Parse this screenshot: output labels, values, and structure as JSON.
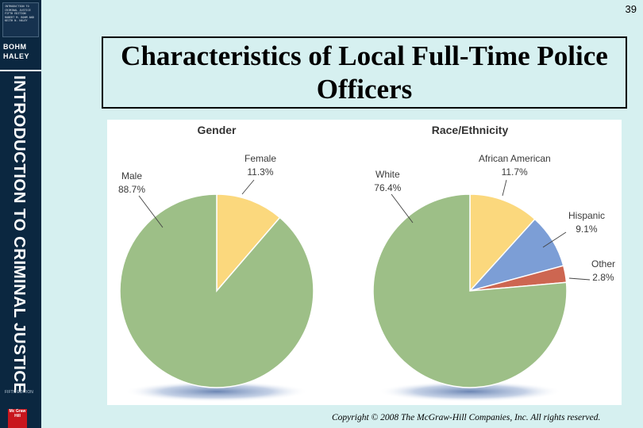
{
  "page_number": "39",
  "slide_title": "Characteristics of Local Full-Time Police Officers",
  "book_spine": {
    "cover_text": "INTRODUCTION TO CRIMINAL JUSTICE FIFTH EDITION ROBERT M. BOHM AND KEITH N. HALEY",
    "authors": [
      "BOHM",
      "HALEY"
    ],
    "title": "INTRODUCTION TO CRIMINAL JUSTICE",
    "edition": "FIFTH EDITION",
    "publisher": "Mc Graw Hill"
  },
  "copyright": "Copyright © 2008 The McGraw-Hill Companies, Inc. All rights reserved.",
  "colors": {
    "slide_background": "#d6f0f0",
    "spine": "#0b2740",
    "green": "#9dbf87",
    "yellow": "#fbd87d",
    "blue": "#7c9ed6",
    "red": "#cd6651",
    "shadow": "#3a5d9a"
  },
  "chart_data": [
    {
      "type": "pie",
      "title": "Gender",
      "slices": [
        {
          "label": "Female",
          "value": 11.3,
          "display": "11.3%",
          "color": "#fbd87d"
        },
        {
          "label": "Male",
          "value": 88.7,
          "display": "88.7%",
          "color": "#9dbf87"
        }
      ]
    },
    {
      "type": "pie",
      "title": "Race/Ethnicity",
      "slices": [
        {
          "label": "African American",
          "value": 11.7,
          "display": "11.7%",
          "color": "#fbd87d"
        },
        {
          "label": "Hispanic",
          "value": 9.1,
          "display": "9.1%",
          "color": "#7c9ed6"
        },
        {
          "label": "Other",
          "value": 2.8,
          "display": "2.8%",
          "color": "#cd6651"
        },
        {
          "label": "White",
          "value": 76.4,
          "display": "76.4%",
          "color": "#9dbf87"
        }
      ]
    }
  ]
}
